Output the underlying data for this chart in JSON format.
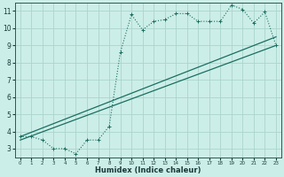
{
  "xlabel": "Humidex (Indice chaleur)",
  "bg_color": "#cceee8",
  "grid_color": "#aad4cc",
  "line_color": "#1a6e60",
  "xlim": [
    -0.5,
    23.5
  ],
  "ylim": [
    2.5,
    11.5
  ],
  "xticks": [
    0,
    1,
    2,
    3,
    4,
    5,
    6,
    7,
    8,
    9,
    10,
    11,
    12,
    13,
    14,
    15,
    16,
    17,
    18,
    19,
    20,
    21,
    22,
    23
  ],
  "yticks": [
    3,
    4,
    5,
    6,
    7,
    8,
    9,
    10,
    11
  ],
  "line1_x": [
    0,
    1,
    2,
    3,
    4,
    5,
    6,
    7,
    8,
    9,
    10,
    11,
    12,
    13,
    14,
    15,
    16,
    17,
    18,
    19,
    20,
    21,
    22,
    23
  ],
  "line1_y": [
    3.7,
    3.7,
    3.5,
    3.0,
    3.0,
    2.7,
    3.5,
    3.5,
    4.3,
    8.6,
    10.8,
    9.9,
    10.4,
    10.5,
    10.85,
    10.85,
    10.4,
    10.4,
    10.4,
    11.35,
    11.1,
    10.3,
    10.95,
    9.0
  ],
  "line2_x": [
    0,
    23
  ],
  "line2_y": [
    3.7,
    9.5
  ],
  "line3_x": [
    0,
    23
  ],
  "line3_y": [
    3.5,
    9.0
  ]
}
